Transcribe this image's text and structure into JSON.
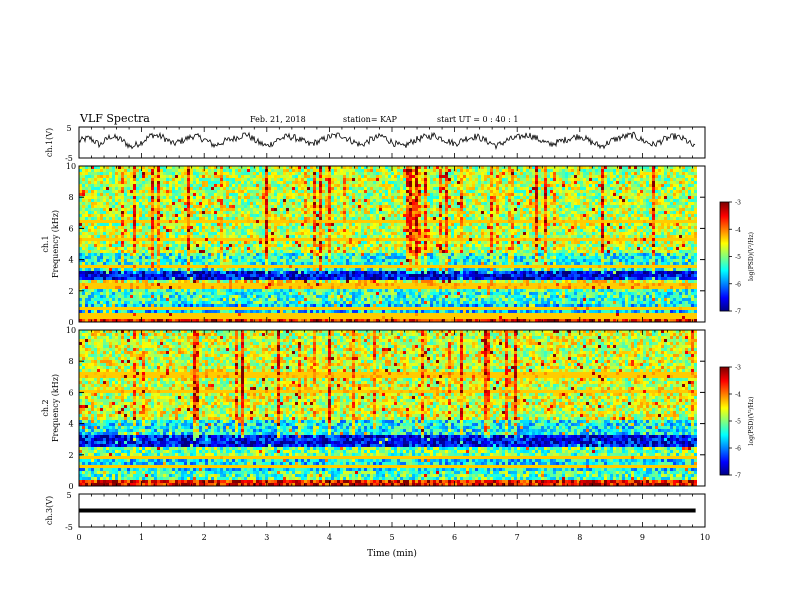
{
  "header": {
    "title": "VLF Spectra",
    "date": "Feb. 21, 2018",
    "station": "station= KAP",
    "start": "start  UT =   0 : 40 : 1"
  },
  "chart_data": [
    {
      "type": "line",
      "panel": "ch1-waveform",
      "ylabel": "ch.1(V)",
      "ylim": [
        -5,
        5
      ],
      "yticks": [
        "5",
        "-5"
      ],
      "x_range_min": [
        0,
        9.85
      ],
      "description_values": "noisy waveform oscillating roughly between -3 and +3 V",
      "y_samples": [
        0.5,
        1.5,
        -0.8,
        2.0,
        1.0,
        -1.5,
        0.2,
        2.5,
        1.8,
        -0.5,
        0.8,
        2.2,
        1.0,
        -1.0,
        0.5,
        1.5,
        2.8,
        0.3,
        -1.2,
        0.9,
        2.0,
        1.2,
        -0.6,
        0.4,
        1.9,
        2.5,
        0.7,
        -0.9,
        1.1,
        2.1,
        0.0,
        -1.5,
        0.6,
        1.7,
        2.3,
        0.9,
        -0.4,
        1.3,
        2.0,
        0.5,
        -1.1,
        0.8,
        1.6,
        2.6,
        1.0,
        -0.7,
        0.3,
        1.4,
        2.2,
        0.1,
        -1.3,
        0.7,
        1.8,
        2.4,
        0.6,
        -0.8,
        1.0,
        2.0,
        0.9,
        -1.8
      ]
    },
    {
      "type": "heatmap",
      "panel": "ch1-spectrogram",
      "ylabel": "ch.1\nFrequency (kHz)",
      "ylim": [
        0,
        10
      ],
      "yticks": [
        "0",
        "2",
        "4",
        "6",
        "8",
        "10"
      ],
      "colorbar": {
        "label": "log(PSD)(V²/Hz)",
        "range": [
          -7,
          -3
        ],
        "ticks": [
          "-3",
          "-4",
          "-5",
          "-6",
          "-7"
        ]
      },
      "bands": [
        {
          "from": 0,
          "to": 0.3,
          "value": -3.6
        },
        {
          "from": 0.3,
          "to": 0.7,
          "value": -5.0
        },
        {
          "from": 0.7,
          "to": 1.3,
          "value": -5.7
        },
        {
          "from": 1.3,
          "to": 2.2,
          "value": -5.3
        },
        {
          "from": 2.2,
          "to": 2.7,
          "value": -4.6
        },
        {
          "from": 2.7,
          "to": 3.3,
          "value": -6.6
        },
        {
          "from": 3.3,
          "to": 4.6,
          "value": -5.4
        },
        {
          "from": 4.6,
          "to": 10,
          "value": -4.8
        }
      ],
      "lines_khz": [
        0.5,
        1.0,
        2.3,
        2.5,
        3.7,
        5.4,
        6.5
      ]
    },
    {
      "type": "heatmap",
      "panel": "ch2-spectrogram",
      "ylabel": "ch.2\nFrequency (kHz)",
      "ylim": [
        0,
        10
      ],
      "yticks": [
        "0",
        "2",
        "4",
        "6",
        "8",
        "10"
      ],
      "colorbar": {
        "label": "log(PSD)(V²/Hz)",
        "range": [
          -7,
          -3
        ],
        "ticks": [
          "-3",
          "-4",
          "-5",
          "-6",
          "-7"
        ]
      },
      "bands": [
        {
          "from": 0,
          "to": 0.4,
          "value": -3.5
        },
        {
          "from": 0.4,
          "to": 1.0,
          "value": -5.2
        },
        {
          "from": 1.0,
          "to": 2.0,
          "value": -5.6
        },
        {
          "from": 2.0,
          "to": 2.6,
          "value": -5.1
        },
        {
          "from": 2.6,
          "to": 3.3,
          "value": -6.5
        },
        {
          "from": 3.3,
          "to": 4.4,
          "value": -5.5
        },
        {
          "from": 4.4,
          "to": 10,
          "value": -4.7
        }
      ],
      "lines_khz": [
        0.3,
        1.3,
        1.9,
        6.2,
        7.2
      ]
    },
    {
      "type": "line",
      "panel": "ch3-waveform",
      "ylabel": "ch.3(V)",
      "ylim": [
        -5,
        5
      ],
      "yticks": [
        "5",
        "-5"
      ],
      "constant_value": 0,
      "x_range_min": [
        0,
        9.85
      ]
    }
  ],
  "xaxis": {
    "label": "Time  (min)",
    "range": [
      0,
      10
    ],
    "ticks": [
      "0",
      "1",
      "2",
      "3",
      "4",
      "5",
      "6",
      "7",
      "8",
      "9",
      "10"
    ]
  }
}
